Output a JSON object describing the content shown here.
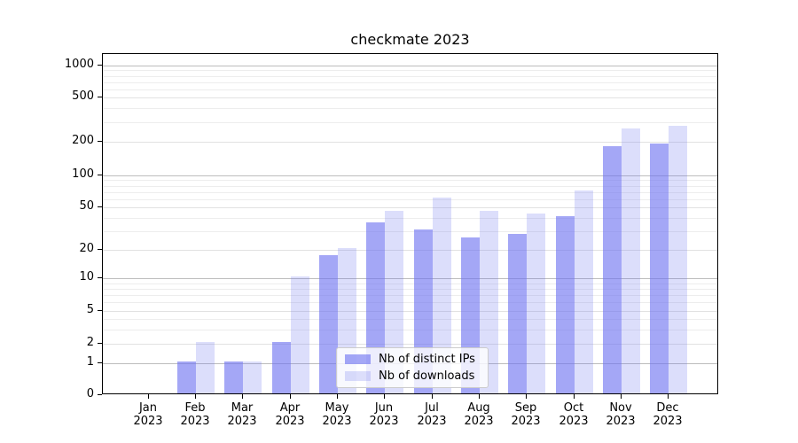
{
  "title": "checkmate 2023",
  "chart_data": {
    "type": "bar",
    "title": "checkmate 2023",
    "categories": [
      "Jan",
      "Feb",
      "Mar",
      "Apr",
      "May",
      "Jun",
      "Jul",
      "Aug",
      "Sep",
      "Oct",
      "Nov",
      "Dec"
    ],
    "year": "2023",
    "series": [
      {
        "name": "Nb of distinct IPs",
        "values": [
          0,
          1,
          1,
          2,
          17,
          35,
          30,
          25,
          27,
          40,
          175,
          187
        ],
        "color": "rgba(108,113,240,0.62)"
      },
      {
        "name": "Nb of downloads",
        "values": [
          0,
          2,
          1,
          10,
          20,
          45,
          60,
          45,
          42,
          70,
          255,
          270
        ],
        "color": "rgba(108,113,240,0.235)"
      }
    ],
    "yticks": [
      0,
      1,
      2,
      5,
      10,
      20,
      50,
      100,
      200,
      500,
      1000
    ],
    "yscale": "symlog",
    "ylim": [
      0,
      1400
    ],
    "xlabel": "",
    "ylabel": "",
    "grid": true,
    "legend_position": "lower center",
    "accent_color": "#6c71f0"
  }
}
